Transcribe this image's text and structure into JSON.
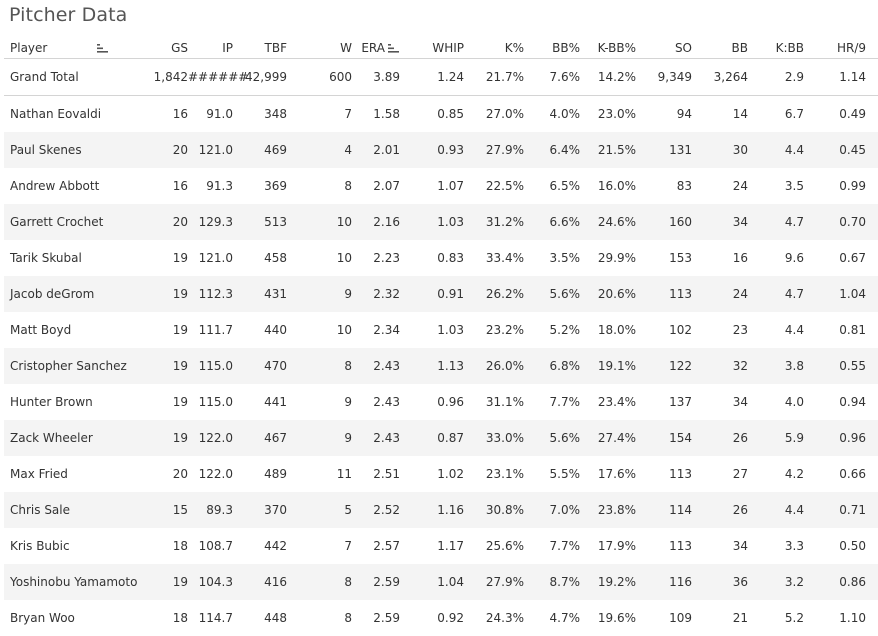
{
  "title": "Pitcher Data",
  "columns": {
    "player": "Player",
    "gs": "GS",
    "ip": "IP",
    "tbf": "TBF",
    "w": "W",
    "era": "ERA",
    "whip": "WHIP",
    "k_pct": "K%",
    "bb_pct": "BB%",
    "kbb_pct": "K-BB%",
    "so": "SO",
    "bb": "BB",
    "k_bb": "K:BB",
    "hr9": "HR/9"
  },
  "icons": {
    "sort": "sort-descending-icon"
  },
  "total": {
    "player": "Grand Total",
    "gs": "1,842",
    "ip": "######",
    "tbf": "42,999",
    "w": "600",
    "era": "3.89",
    "whip": "1.24",
    "k_pct": "21.7%",
    "bb_pct": "7.6%",
    "kbb_pct": "14.2%",
    "so": "9,349",
    "bb": "3,264",
    "k_bb": "2.9",
    "hr9": "1.14"
  },
  "rows": [
    {
      "player": "Nathan Eovaldi",
      "gs": "16",
      "ip": "91.0",
      "tbf": "348",
      "w": "7",
      "era": "1.58",
      "whip": "0.85",
      "k_pct": "27.0%",
      "bb_pct": "4.0%",
      "kbb_pct": "23.0%",
      "so": "94",
      "bb": "14",
      "k_bb": "6.7",
      "hr9": "0.49"
    },
    {
      "player": "Paul Skenes",
      "gs": "20",
      "ip": "121.0",
      "tbf": "469",
      "w": "4",
      "era": "2.01",
      "whip": "0.93",
      "k_pct": "27.9%",
      "bb_pct": "6.4%",
      "kbb_pct": "21.5%",
      "so": "131",
      "bb": "30",
      "k_bb": "4.4",
      "hr9": "0.45"
    },
    {
      "player": "Andrew Abbott",
      "gs": "16",
      "ip": "91.3",
      "tbf": "369",
      "w": "8",
      "era": "2.07",
      "whip": "1.07",
      "k_pct": "22.5%",
      "bb_pct": "6.5%",
      "kbb_pct": "16.0%",
      "so": "83",
      "bb": "24",
      "k_bb": "3.5",
      "hr9": "0.99"
    },
    {
      "player": "Garrett Crochet",
      "gs": "20",
      "ip": "129.3",
      "tbf": "513",
      "w": "10",
      "era": "2.16",
      "whip": "1.03",
      "k_pct": "31.2%",
      "bb_pct": "6.6%",
      "kbb_pct": "24.6%",
      "so": "160",
      "bb": "34",
      "k_bb": "4.7",
      "hr9": "0.70"
    },
    {
      "player": "Tarik Skubal",
      "gs": "19",
      "ip": "121.0",
      "tbf": "458",
      "w": "10",
      "era": "2.23",
      "whip": "0.83",
      "k_pct": "33.4%",
      "bb_pct": "3.5%",
      "kbb_pct": "29.9%",
      "so": "153",
      "bb": "16",
      "k_bb": "9.6",
      "hr9": "0.67"
    },
    {
      "player": "Jacob deGrom",
      "gs": "19",
      "ip": "112.3",
      "tbf": "431",
      "w": "9",
      "era": "2.32",
      "whip": "0.91",
      "k_pct": "26.2%",
      "bb_pct": "5.6%",
      "kbb_pct": "20.6%",
      "so": "113",
      "bb": "24",
      "k_bb": "4.7",
      "hr9": "1.04"
    },
    {
      "player": "Matt Boyd",
      "gs": "19",
      "ip": "111.7",
      "tbf": "440",
      "w": "10",
      "era": "2.34",
      "whip": "1.03",
      "k_pct": "23.2%",
      "bb_pct": "5.2%",
      "kbb_pct": "18.0%",
      "so": "102",
      "bb": "23",
      "k_bb": "4.4",
      "hr9": "0.81"
    },
    {
      "player": "Cristopher Sanchez",
      "gs": "19",
      "ip": "115.0",
      "tbf": "470",
      "w": "8",
      "era": "2.43",
      "whip": "1.13",
      "k_pct": "26.0%",
      "bb_pct": "6.8%",
      "kbb_pct": "19.1%",
      "so": "122",
      "bb": "32",
      "k_bb": "3.8",
      "hr9": "0.55"
    },
    {
      "player": "Hunter Brown",
      "gs": "19",
      "ip": "115.0",
      "tbf": "441",
      "w": "9",
      "era": "2.43",
      "whip": "0.96",
      "k_pct": "31.1%",
      "bb_pct": "7.7%",
      "kbb_pct": "23.4%",
      "so": "137",
      "bb": "34",
      "k_bb": "4.0",
      "hr9": "0.94"
    },
    {
      "player": "Zack Wheeler",
      "gs": "19",
      "ip": "122.0",
      "tbf": "467",
      "w": "9",
      "era": "2.43",
      "whip": "0.87",
      "k_pct": "33.0%",
      "bb_pct": "5.6%",
      "kbb_pct": "27.4%",
      "so": "154",
      "bb": "26",
      "k_bb": "5.9",
      "hr9": "0.96"
    },
    {
      "player": "Max Fried",
      "gs": "20",
      "ip": "122.0",
      "tbf": "489",
      "w": "11",
      "era": "2.51",
      "whip": "1.02",
      "k_pct": "23.1%",
      "bb_pct": "5.5%",
      "kbb_pct": "17.6%",
      "so": "113",
      "bb": "27",
      "k_bb": "4.2",
      "hr9": "0.66"
    },
    {
      "player": "Chris Sale",
      "gs": "15",
      "ip": "89.3",
      "tbf": "370",
      "w": "5",
      "era": "2.52",
      "whip": "1.16",
      "k_pct": "30.8%",
      "bb_pct": "7.0%",
      "kbb_pct": "23.8%",
      "so": "114",
      "bb": "26",
      "k_bb": "4.4",
      "hr9": "0.71"
    },
    {
      "player": "Kris Bubic",
      "gs": "18",
      "ip": "108.7",
      "tbf": "442",
      "w": "7",
      "era": "2.57",
      "whip": "1.17",
      "k_pct": "25.6%",
      "bb_pct": "7.7%",
      "kbb_pct": "17.9%",
      "so": "113",
      "bb": "34",
      "k_bb": "3.3",
      "hr9": "0.50"
    },
    {
      "player": "Yoshinobu Yamamoto",
      "gs": "19",
      "ip": "104.3",
      "tbf": "416",
      "w": "8",
      "era": "2.59",
      "whip": "1.04",
      "k_pct": "27.9%",
      "bb_pct": "8.7%",
      "kbb_pct": "19.2%",
      "so": "116",
      "bb": "36",
      "k_bb": "3.2",
      "hr9": "0.86"
    },
    {
      "player": "Bryan Woo",
      "gs": "18",
      "ip": "114.7",
      "tbf": "448",
      "w": "8",
      "era": "2.59",
      "whip": "0.92",
      "k_pct": "24.3%",
      "bb_pct": "4.7%",
      "kbb_pct": "19.6%",
      "so": "109",
      "bb": "21",
      "k_bb": "5.2",
      "hr9": "1.10"
    }
  ]
}
